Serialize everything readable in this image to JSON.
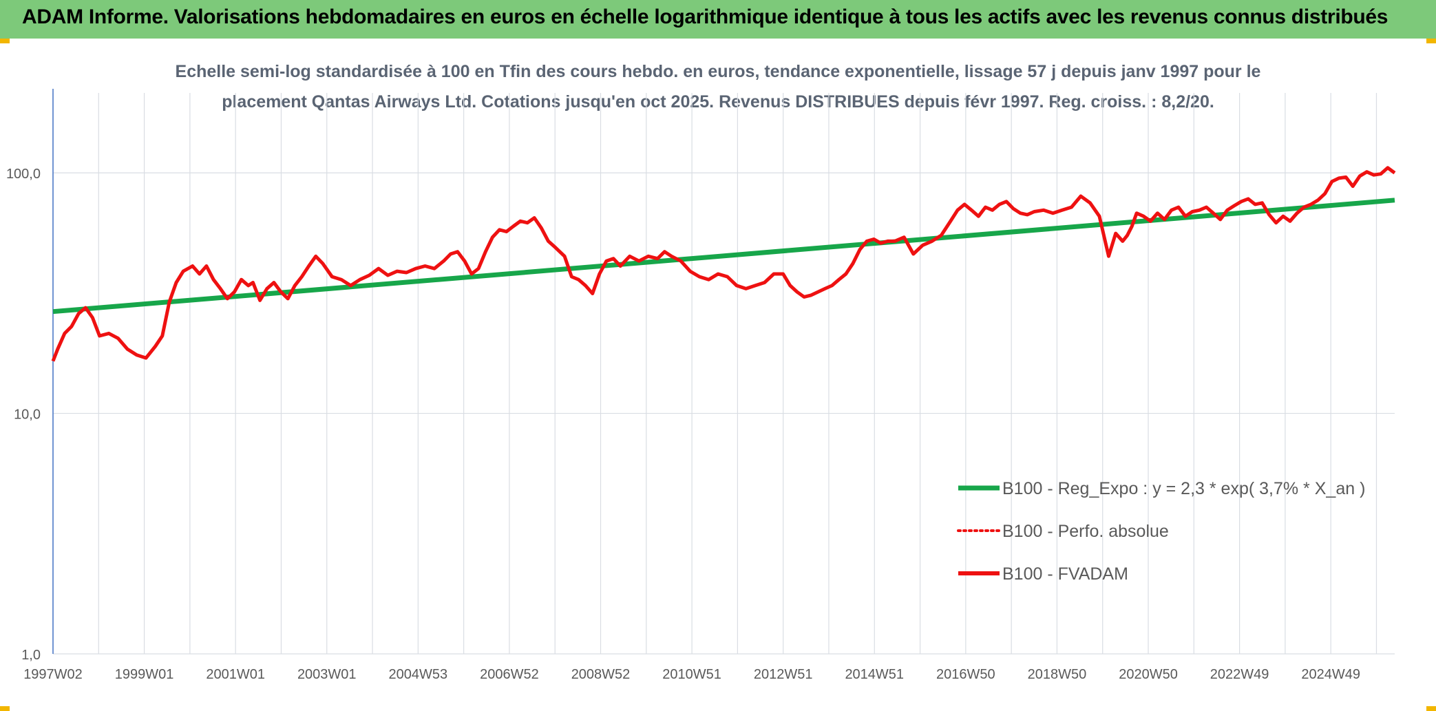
{
  "header": {
    "title": "ADAM Informe. Valorisations hebdomadaires en euros en échelle logarithmique identique à tous les actifs avec les revenus connus distribués"
  },
  "colors": {
    "banner": "#7dc97a",
    "trend": "#17a64a",
    "fvadam": "#ee1111",
    "perfo": "#ee1111",
    "grid": "#d9dde3",
    "axis": "#4472c4"
  },
  "chart_data": {
    "type": "line",
    "title_line1": "Echelle semi-log standardisée à 100 en Tfin des cours hebdo. en euros, tendance exponentielle, lissage 57 j depuis janv 1997 pour le",
    "title_line2": "placement Qantas Airways Ltd. Cotations jusqu'en oct 2025. Revenus DISTRIBUES depuis févr 1997. Reg. croiss. : 8,2/20.",
    "y_scale": "log",
    "ylim": [
      1,
      100
    ],
    "y_ticks": [
      {
        "value": 100,
        "label": "100,0"
      },
      {
        "value": 10,
        "label": "10,0"
      },
      {
        "value": 1,
        "label": "1,0"
      }
    ],
    "x_ticks": [
      "1997W02",
      "1999W01",
      "2001W01",
      "2003W01",
      "2004W53",
      "2006W52",
      "2008W52",
      "2010W51",
      "2012W51",
      "2014W51",
      "2016W50",
      "2018W50",
      "2020W50",
      "2022W49",
      "2024W49"
    ],
    "x_range": [
      1997.0,
      2025.85
    ],
    "grid": true,
    "legend_position": "bottom-right",
    "series": [
      {
        "name": "B100 - Reg_Expo : y = 2,3 * exp( 3,7% *  X_an )",
        "style": "solid-thick",
        "x": [
          1997.0,
          2025.85
        ],
        "y": [
          26.5,
          77
        ]
      },
      {
        "name": "B100 - Perfo. absolue",
        "style": "dotted",
        "x": [],
        "y": []
      },
      {
        "name": "B100 - FVADAM",
        "style": "solid",
        "x": [
          1997.0,
          1997.1,
          1997.25,
          1997.4,
          1997.55,
          1997.7,
          1997.85,
          1998.0,
          1998.2,
          1998.4,
          1998.6,
          1998.8,
          1999.0,
          1999.2,
          1999.35,
          1999.5,
          1999.65,
          1999.8,
          2000.0,
          2000.15,
          2000.3,
          2000.45,
          2000.6,
          2000.75,
          2000.9,
          2001.05,
          2001.2,
          2001.3,
          2001.45,
          2001.6,
          2001.75,
          2001.9,
          2002.05,
          2002.2,
          2002.35,
          2002.5,
          2002.65,
          2002.8,
          2003.0,
          2003.2,
          2003.4,
          2003.6,
          2003.8,
          2004.0,
          2004.2,
          2004.4,
          2004.6,
          2004.8,
          2005.0,
          2005.2,
          2005.4,
          2005.55,
          2005.7,
          2005.85,
          2006.0,
          2006.15,
          2006.3,
          2006.45,
          2006.6,
          2006.75,
          2006.9,
          2007.05,
          2007.2,
          2007.35,
          2007.5,
          2007.65,
          2007.8,
          2008.0,
          2008.15,
          2008.3,
          2008.45,
          2008.6,
          2008.75,
          2008.9,
          2009.05,
          2009.2,
          2009.4,
          2009.6,
          2009.8,
          2010.0,
          2010.15,
          2010.3,
          2010.5,
          2010.7,
          2010.9,
          2011.1,
          2011.3,
          2011.5,
          2011.7,
          2011.9,
          2012.1,
          2012.3,
          2012.5,
          2012.7,
          2012.85,
          2013.0,
          2013.15,
          2013.3,
          2013.45,
          2013.6,
          2013.75,
          2013.9,
          2014.05,
          2014.2,
          2014.35,
          2014.5,
          2014.65,
          2014.8,
          2014.95,
          2015.1,
          2015.3,
          2015.5,
          2015.7,
          2015.9,
          2016.1,
          2016.3,
          2016.45,
          2016.6,
          2016.75,
          2016.9,
          2017.05,
          2017.2,
          2017.35,
          2017.5,
          2017.65,
          2017.8,
          2017.95,
          2018.1,
          2018.3,
          2018.5,
          2018.7,
          2018.9,
          2019.1,
          2019.3,
          2019.5,
          2019.7,
          2019.85,
          2020.0,
          2020.1,
          2020.2,
          2020.3,
          2020.45,
          2020.6,
          2020.75,
          2020.9,
          2021.05,
          2021.2,
          2021.35,
          2021.5,
          2021.65,
          2021.8,
          2021.95,
          2022.1,
          2022.25,
          2022.4,
          2022.55,
          2022.7,
          2022.85,
          2023.0,
          2023.15,
          2023.3,
          2023.45,
          2023.6,
          2023.75,
          2023.9,
          2024.05,
          2024.2,
          2024.35,
          2024.5,
          2024.65,
          2024.8,
          2024.95,
          2025.1,
          2025.25,
          2025.4,
          2025.55,
          2025.7,
          2025.85
        ],
        "y": [
          16.5,
          18.5,
          21.5,
          23,
          26,
          27.5,
          25,
          21,
          21.5,
          20.5,
          18.5,
          17.5,
          17.0,
          19,
          21,
          29,
          35,
          39,
          41,
          38,
          41,
          36,
          33,
          30,
          32,
          36,
          34,
          35,
          29.5,
          33,
          35,
          32,
          30,
          34,
          37,
          41,
          45,
          42,
          37,
          36,
          34,
          36,
          37.5,
          40,
          37.5,
          39,
          38.5,
          40,
          41,
          40,
          43,
          46,
          47,
          43,
          38,
          40,
          47,
          54,
          58,
          57,
          60,
          63,
          62,
          65,
          59,
          52,
          49,
          45,
          37,
          36,
          34,
          31.5,
          38,
          43,
          44,
          41,
          45,
          43,
          45,
          44,
          47,
          45,
          43,
          39,
          37,
          36,
          38,
          37,
          34,
          33,
          34,
          35,
          38,
          38,
          34,
          32,
          30.5,
          31,
          32,
          33,
          34,
          36,
          38,
          42,
          48,
          52,
          53,
          51,
          52,
          52,
          54,
          46,
          50,
          52,
          55,
          63,
          70,
          74,
          70,
          66,
          72,
          70,
          74,
          76,
          71,
          68,
          67,
          69,
          70,
          68,
          70,
          72,
          80,
          75,
          66,
          45,
          56,
          52,
          55,
          60,
          68,
          66,
          63,
          68,
          64,
          70,
          72,
          66,
          69,
          70,
          72,
          68,
          64,
          70,
          73,
          76,
          78,
          74,
          75,
          67,
          62,
          66,
          63,
          68,
          72,
          74,
          77,
          82,
          92,
          95,
          96,
          88,
          97,
          101,
          98,
          99,
          105,
          100
        ]
      }
    ]
  }
}
